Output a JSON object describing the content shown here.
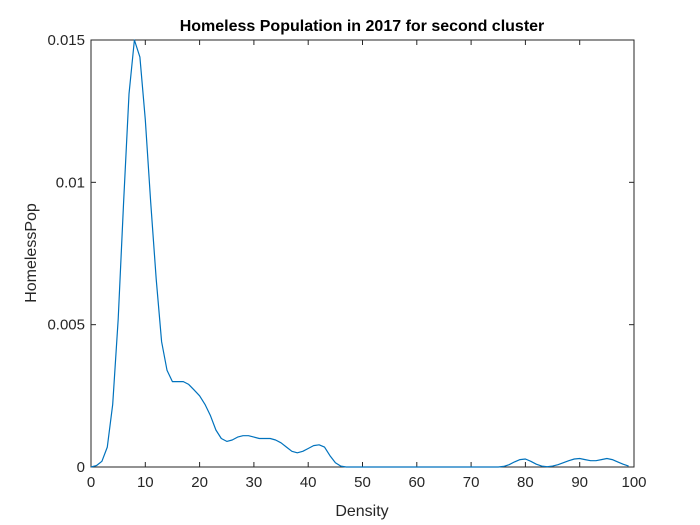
{
  "chart_data": {
    "type": "line",
    "title": "Homeless Population in 2017 for second cluster",
    "xlabel": "Density",
    "ylabel": "HomelessPop",
    "xlim": [
      0,
      100
    ],
    "ylim": [
      0,
      0.015
    ],
    "xticks": [
      0,
      10,
      20,
      30,
      40,
      50,
      60,
      70,
      80,
      90,
      100
    ],
    "xtick_labels": [
      "0",
      "10",
      "20",
      "30",
      "40",
      "50",
      "60",
      "70",
      "80",
      "90",
      "100"
    ],
    "yticks": [
      0,
      0.005,
      0.01,
      0.015
    ],
    "ytick_labels": [
      "0",
      "0.005",
      "0.01",
      "0.015"
    ],
    "grid": false,
    "series": [
      {
        "color": "#0072BD",
        "x": [
          0,
          1,
          2,
          3,
          4,
          5,
          6,
          7,
          8,
          9,
          10,
          11,
          12,
          13,
          14,
          15,
          16,
          17,
          18,
          19,
          20,
          21,
          22,
          23,
          24,
          25,
          26,
          27,
          28,
          29,
          30,
          31,
          32,
          33,
          34,
          35,
          36,
          37,
          38,
          39,
          40,
          41,
          42,
          43,
          44,
          45,
          46,
          47,
          48,
          50,
          55,
          60,
          65,
          70,
          75,
          76,
          77,
          78,
          79,
          80,
          81,
          82,
          83,
          84,
          85,
          86,
          87,
          88,
          89,
          90,
          91,
          92,
          93,
          94,
          95,
          96,
          97,
          98,
          99
        ],
        "y": [
          0,
          5e-05,
          0.0002,
          0.0007,
          0.0022,
          0.0052,
          0.0093,
          0.0131,
          0.015,
          0.0144,
          0.0122,
          0.0093,
          0.0066,
          0.0044,
          0.0034,
          0.003,
          0.003,
          0.003,
          0.0029,
          0.0027,
          0.0025,
          0.0022,
          0.0018,
          0.0013,
          0.001,
          0.0009,
          0.00095,
          0.00105,
          0.0011,
          0.0011,
          0.00105,
          0.001,
          0.001,
          0.001,
          0.00095,
          0.00085,
          0.0007,
          0.00055,
          0.0005,
          0.00055,
          0.00065,
          0.00075,
          0.00078,
          0.0007,
          0.0004,
          0.00015,
          3e-05,
          0,
          0,
          0,
          0,
          0,
          0,
          0,
          0,
          2e-05,
          8e-05,
          0.00018,
          0.00026,
          0.00028,
          0.0002,
          0.0001,
          3e-05,
          1e-05,
          3e-05,
          8e-05,
          0.00015,
          0.00022,
          0.00028,
          0.0003,
          0.00026,
          0.00022,
          0.00022,
          0.00026,
          0.0003,
          0.00026,
          0.00018,
          0.0001,
          3e-05
        ]
      }
    ]
  }
}
